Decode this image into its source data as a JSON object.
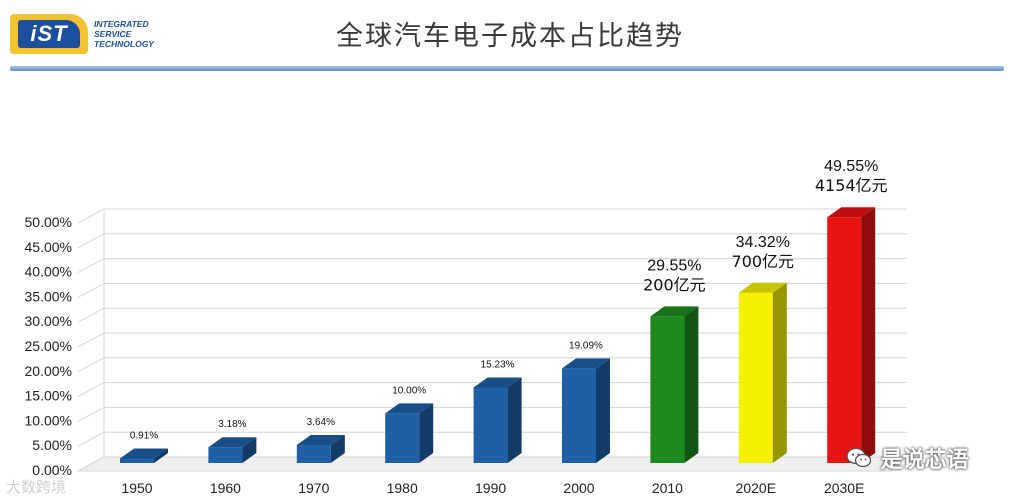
{
  "logo": {
    "badge_text": "iST",
    "line1": "INTEGRATED",
    "line2": "SERVICE",
    "line3": "TECHNOLOGY",
    "badge_color": "#1c4f9c",
    "accent_color": "#f2c230"
  },
  "title": "全球汽车电子成本占比趋势",
  "chart_data": {
    "type": "bar",
    "title": "全球汽车电子成本占比趋势",
    "xlabel": "",
    "ylabel": "",
    "categories": [
      "1950",
      "1960",
      "1970",
      "1980",
      "1990",
      "2000",
      "2010",
      "2020E",
      "2030E"
    ],
    "values": [
      0.91,
      3.18,
      3.64,
      10.0,
      15.23,
      19.09,
      29.55,
      34.32,
      49.55
    ],
    "value_labels": [
      "0.91%",
      "3.18%",
      "3.64%",
      "10.00%",
      "15.23%",
      "19.09%",
      "29.55%",
      "34.32%",
      "49.55%"
    ],
    "amount_labels": [
      "",
      "",
      "",
      "",
      "",
      "",
      "200亿元",
      "700亿元",
      "4154亿元"
    ],
    "bar_colors": [
      "#1f5fa6",
      "#1f5fa6",
      "#1f5fa6",
      "#1f5fa6",
      "#1f5fa6",
      "#1f5fa6",
      "#1e8a1e",
      "#f4f000",
      "#e81414"
    ],
    "y_ticks": [
      "0.00%",
      "5.00%",
      "10.00%",
      "15.00%",
      "20.00%",
      "25.00%",
      "30.00%",
      "35.00%",
      "40.00%",
      "45.00%",
      "50.00%"
    ],
    "ylim": [
      0,
      50
    ],
    "grid": true,
    "legend": "none",
    "style": "3d"
  },
  "watermarks": {
    "left": "大数跨境",
    "right": "是说芯语"
  }
}
